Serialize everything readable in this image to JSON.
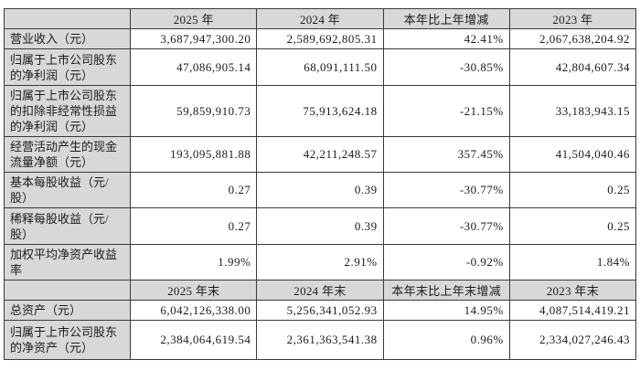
{
  "colors": {
    "header_bg": "#d8d8d8",
    "border": "#3a3a3a",
    "text": "#1c1c1c",
    "cell_bg": "#ffffff"
  },
  "header1": [
    "2025 年",
    "2024 年",
    "本年比上年增减",
    "2023 年"
  ],
  "rows1": [
    {
      "label": "营业收入（元）",
      "y2025": "3,687,947,300.20",
      "y2024": "2,589,692,805.31",
      "change": "42.41%",
      "y2023": "2,067,638,204.92"
    },
    {
      "label": "归属于上市公司股东的净利润（元）",
      "y2025": "47,086,905.14",
      "y2024": "68,091,111.50",
      "change": "-30.85%",
      "y2023": "42,804,607.34"
    },
    {
      "label": "归属于上市公司股东的扣除非经常性损益的净利润（元）",
      "y2025": "59,859,910.73",
      "y2024": "75,913,624.18",
      "change": "-21.15%",
      "y2023": "33,183,943.15"
    },
    {
      "label": "经营活动产生的现金流量净额（元）",
      "y2025": "193,095,881.88",
      "y2024": "42,211,248.57",
      "change": "357.45%",
      "y2023": "41,504,040.46"
    },
    {
      "label": "基本每股收益（元/股）",
      "y2025": "0.27",
      "y2024": "0.39",
      "change": "-30.77%",
      "y2023": "0.25"
    },
    {
      "label": "稀释每股收益（元/股）",
      "y2025": "0.27",
      "y2024": "0.39",
      "change": "-30.77%",
      "y2023": "0.25"
    },
    {
      "label": "加权平均净资产收益率",
      "y2025": "1.99%",
      "y2024": "2.91%",
      "change": "-0.92%",
      "y2023": "1.84%"
    }
  ],
  "header2": [
    "2025 年末",
    "2024 年末",
    "本年末比上年末增减",
    "2023 年末"
  ],
  "rows2": [
    {
      "label": "总资产（元）",
      "y2025": "6,042,126,338.00",
      "y2024": "5,256,341,052.93",
      "change": "14.95%",
      "y2023": "4,087,514,419.21"
    },
    {
      "label": "归属于上市公司股东的净资产（元）",
      "y2025": "2,384,064,619.54",
      "y2024": "2,361,363,541.38",
      "change": "0.96%",
      "y2023": "2,334,027,246.43"
    }
  ]
}
